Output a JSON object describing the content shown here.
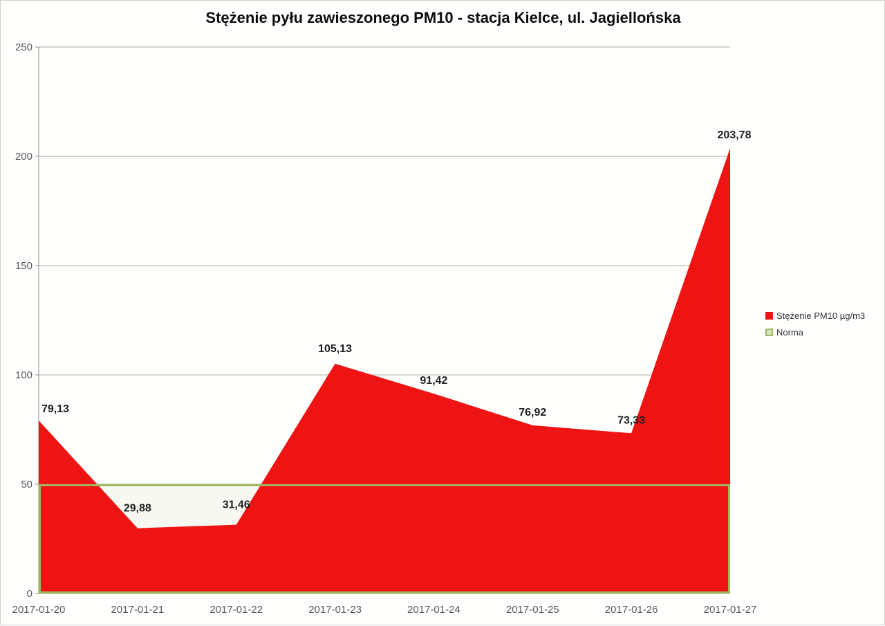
{
  "chart_data": {
    "type": "area",
    "title": "Stężenie pyłu zawieszonego PM10 - stacja Kielce, ul. Jagiellońska",
    "categories": [
      "2017-01-20",
      "2017-01-21",
      "2017-01-22",
      "2017-01-23",
      "2017-01-24",
      "2017-01-25",
      "2017-01-26",
      "2017-01-27"
    ],
    "series": [
      {
        "name": "Stężenie PM10 µg/m3",
        "type": "area",
        "color": "#ee1414",
        "values": [
          79.13,
          29.88,
          31.46,
          105.13,
          91.42,
          76.92,
          73.33,
          203.78
        ],
        "data_labels": [
          "79,13",
          "29,88",
          "31,46",
          "105,13",
          "91,42",
          "76,92",
          "73,33",
          "203,78"
        ]
      },
      {
        "name": "Norma",
        "type": "constant-band",
        "color": "#9fb75e",
        "value": 50
      }
    ],
    "xlabel": "",
    "ylabel": "",
    "ylim": [
      0,
      250
    ],
    "yticks": [
      0,
      50,
      100,
      150,
      200,
      250
    ],
    "grid": "horizontal",
    "legend_position": "right"
  },
  "legend": {
    "items": [
      {
        "label": "Stężenie PM10 µg/m3",
        "color": "#ee1414"
      },
      {
        "label": "Norma",
        "color": "#9fb75e"
      }
    ]
  },
  "colors": {
    "series_fill": "#ee1414",
    "norma_line": "#9fb75e",
    "norma_fill": "#f6f8f1",
    "norma_swatch_fill": "#d9e3bb",
    "gridline": "#ababab",
    "axis_line": "#8c8c8c",
    "tick_text": "#595959",
    "data_label_text": "#1f1f1f",
    "title_text": "#0d0d0d",
    "background": "#ffffff"
  }
}
